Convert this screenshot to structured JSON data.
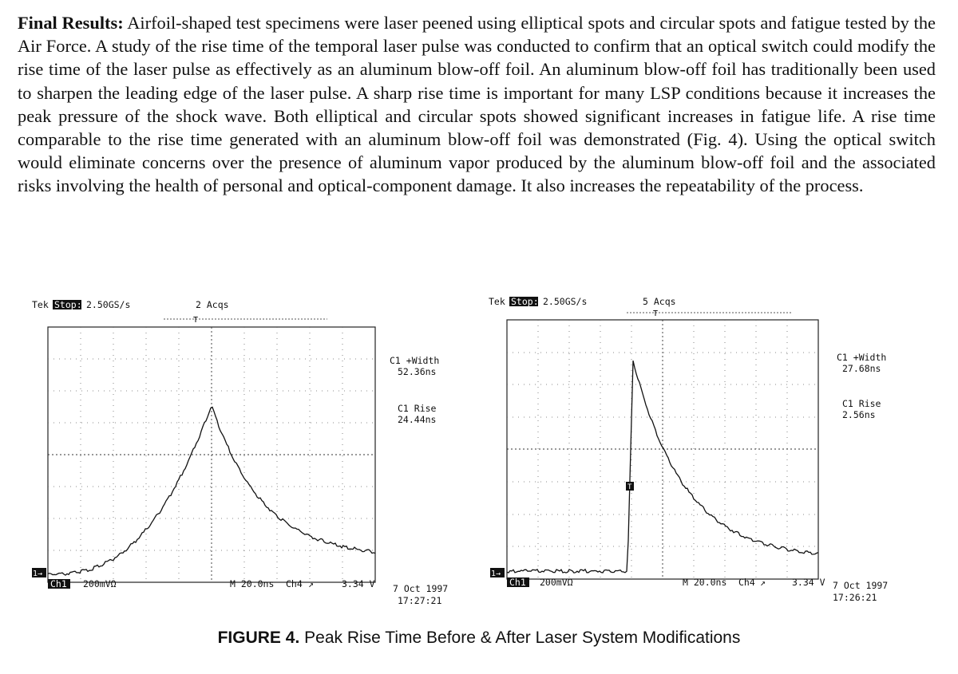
{
  "paragraph": {
    "lead": "Final Results:",
    "body": "Airfoil-shaped test specimens were laser peened using elliptical spots and circular spots and fatigue tested by the Air Force. A study of the rise time of the temporal laser pulse was conducted to confirm that an optical switch could modify the rise time of the laser pulse as effectively as an aluminum blow-off foil. An aluminum blow-off foil has traditionally been used to sharpen the leading edge of the laser pulse. A sharp rise time is important for many LSP conditions because it increases the peak pressure of the shock wave. Both elliptical and circular spots showed significant increases in fatigue life. A rise time comparable to the rise time generated with an aluminum blow-off foil was demonstrated (Fig. 4). Using the optical switch would eliminate concerns over the presence of aluminum vapor produced by the aluminum blow-off foil and the associated risks involving the health of personal and optical-component damage. It also increases the repeatability of the process."
  },
  "scopes": [
    {
      "brand": "Tek",
      "state": "Stop:",
      "rate": "2.50GS/s",
      "acqs": "2 Acqs",
      "width_label": "C1 +Width",
      "width_value": "52.36ns",
      "rise_label": "C1 Rise",
      "rise_value": "24.44ns",
      "ch_label": "Ch1",
      "ch_scale": "200mVΩ",
      "timebase": "M 20.0ns",
      "trig_ch": "Ch4",
      "trig_level": "3.34 V",
      "date": "7 Oct 1997",
      "time": "17:27:21",
      "ground_marker": "1→",
      "trigger_marker": ""
    },
    {
      "brand": "Tek",
      "state": "Stop:",
      "rate": "2.50GS/s",
      "acqs": "5 Acqs",
      "width_label": "C1 +Width",
      "width_value": "27.68ns",
      "rise_label": "C1 Rise",
      "rise_value": "2.56ns",
      "ch_label": "Ch1",
      "ch_scale": "200mVΩ",
      "timebase": "M 20.0ns",
      "trig_ch": "Ch4",
      "trig_level": "3.34 V",
      "date": "7 Oct 1997",
      "time": "17:26:21",
      "ground_marker": "1→",
      "trigger_marker": "T"
    }
  ],
  "caption": {
    "label": "FIGURE 4.",
    "text": "Peak Rise Time Before & After Laser System Modifications"
  }
}
